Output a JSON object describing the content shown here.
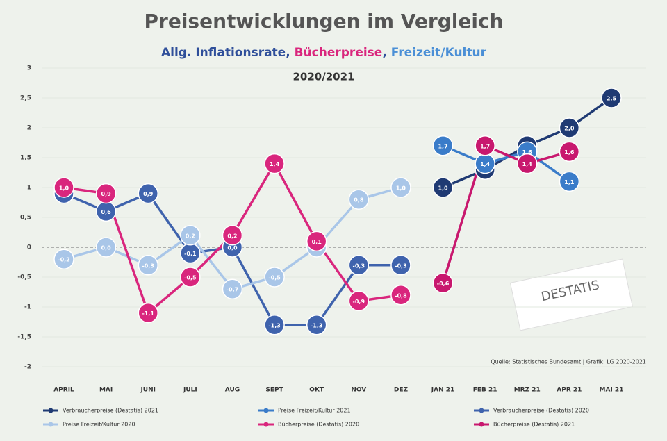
{
  "chart_data": {
    "type": "line",
    "title": "Preisentwicklungen im  Vergleich",
    "subtitle": [
      {
        "text": "Allg. Inflationsrate",
        "color": "#2f4f9a"
      },
      {
        "text": "Bücherpreise",
        "color": "#d9267d"
      },
      {
        "text": "Freizeit/Kultur",
        "color": "#4a8fd6"
      }
    ],
    "subtitle_separator": ", ",
    "period": "2020/2021",
    "source": "Quelle: Statistisches Bundesamt | Grafik: LG 2020-2021",
    "logo": "DESTATIS",
    "categories": [
      "APRIL",
      "MAI",
      "JUNI",
      "JULI",
      "AUG",
      "SEPT",
      "OKT",
      "NOV",
      "DEZ",
      "JAN 21",
      "FEB 21",
      "MRZ 21",
      "APR 21",
      "MAI 21"
    ],
    "ylim": [
      -2,
      3
    ],
    "yticks": [
      {
        "value": -2,
        "label": "-2"
      },
      {
        "value": -1.5,
        "label": "-1,5"
      },
      {
        "value": -1,
        "label": "-1"
      },
      {
        "value": -0.5,
        "label": "-0,5"
      },
      {
        "value": 0,
        "label": "0"
      },
      {
        "value": 0.5,
        "label": "0,5"
      },
      {
        "value": 1,
        "label": "1"
      },
      {
        "value": 1.5,
        "label": "1,5"
      },
      {
        "value": 2,
        "label": "2"
      },
      {
        "value": 2.5,
        "label": "2,5"
      },
      {
        "value": 3,
        "label": "3"
      }
    ],
    "grid": true,
    "series": [
      {
        "name": "Verbraucherpreise (Destatis) 2021",
        "color": "#1f3a73",
        "values": [
          null,
          null,
          null,
          null,
          null,
          null,
          null,
          null,
          null,
          1.0,
          1.3,
          1.7,
          2.0,
          2.5
        ],
        "value_labels": [
          null,
          null,
          null,
          null,
          null,
          null,
          null,
          null,
          null,
          "1,0",
          "1,3",
          "1,7",
          "2,0",
          "2,5"
        ]
      },
      {
        "name": "Preise Freizeit/Kultur 2021",
        "color": "#3a7cc9",
        "values": [
          null,
          null,
          null,
          null,
          null,
          null,
          null,
          null,
          null,
          1.7,
          1.4,
          1.6,
          1.1,
          null
        ],
        "value_labels": [
          null,
          null,
          null,
          null,
          null,
          null,
          null,
          null,
          null,
          "1,7",
          "1,4",
          "1,6",
          "1,1",
          null
        ]
      },
      {
        "name": "Verbraucherpreise (Destatis) 2020",
        "color": "#3f63ad",
        "values": [
          0.9,
          0.6,
          0.9,
          -0.1,
          0.0,
          -1.3,
          -1.3,
          -0.3,
          -0.3,
          null,
          null,
          null,
          null,
          null
        ],
        "value_labels": [
          "0,9",
          "0,6",
          "0,9",
          "-0,1",
          "0,0",
          "-1,3",
          "-1,3",
          "-0,3",
          "-0,3",
          null,
          null,
          null,
          null,
          null
        ]
      },
      {
        "name": "Preise Freizeit/Kultur 2020",
        "color": "#a9c6e8",
        "values": [
          -0.2,
          0.0,
          -0.3,
          0.2,
          -0.7,
          -0.5,
          0.0,
          0.8,
          1.0,
          null,
          null,
          null,
          null,
          null
        ],
        "value_labels": [
          "-0,2",
          "0,0",
          "-0,3",
          "0,2",
          "-0,7",
          "-0,5",
          "0,0",
          "0,8",
          "1,0",
          null,
          null,
          null,
          null,
          null
        ]
      },
      {
        "name": "Bücherpreise (Destatis) 2020",
        "color": "#d9267d",
        "values": [
          1.0,
          0.9,
          -1.1,
          -0.5,
          0.2,
          1.4,
          0.1,
          -0.9,
          -0.8,
          null,
          null,
          null,
          null,
          null
        ],
        "value_labels": [
          "1,0",
          "0,9",
          "-1,1",
          "-0,5",
          "0,2",
          "1,4",
          "0,1",
          "-0,9",
          "-0,8",
          null,
          null,
          null,
          null,
          null
        ]
      },
      {
        "name": "Bücherpreise (Destatis) 2021",
        "color": "#c8186e",
        "values": [
          null,
          null,
          null,
          null,
          null,
          null,
          null,
          null,
          null,
          -0.6,
          1.7,
          1.4,
          1.6,
          null
        ],
        "value_labels": [
          null,
          null,
          null,
          null,
          null,
          null,
          null,
          null,
          null,
          "-0,6",
          "1,7",
          "1,4",
          "1,6",
          null
        ]
      }
    ]
  }
}
